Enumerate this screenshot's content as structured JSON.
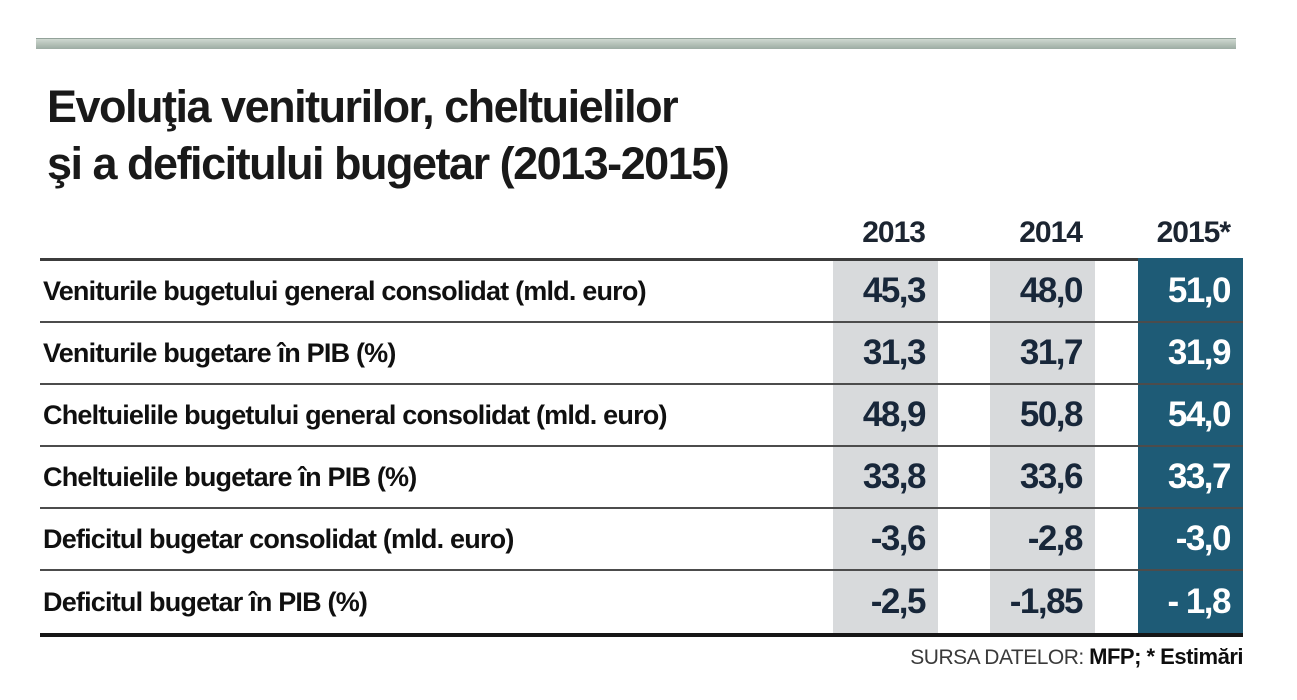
{
  "title_line1": "Evoluţia veniturilor, cheltuielilor",
  "title_line2": "şi a deficitului bugetar (2013-2015)",
  "colors": {
    "highlight_column_teal": "#1e5b76",
    "column_band_gray": "#d8dadc",
    "top_bar_sage": "#b8c4bb"
  },
  "chart_data": {
    "type": "table",
    "title": "Evoluţia veniturilor, cheltuielilor şi a deficitului bugetar (2013-2015)",
    "columns": [
      "2013",
      "2014",
      "2015*"
    ],
    "highlighted_column": "2015*",
    "rows": [
      {
        "label": "Veniturile bugetului general consolidat (mld. euro)",
        "values": [
          "45,3",
          "48,0",
          "51,0"
        ]
      },
      {
        "label": "Veniturile bugetare în PIB (%)",
        "values": [
          "31,3",
          "31,7",
          "31,9"
        ]
      },
      {
        "label": "Cheltuielile bugetului general consolidat (mld. euro)",
        "values": [
          "48,9",
          "50,8",
          "54,0"
        ]
      },
      {
        "label": "Cheltuielile bugetare în PIB (%)",
        "values": [
          "33,8",
          "33,6",
          "33,7"
        ]
      },
      {
        "label": "Deficitul bugetar consolidat (mld. euro)",
        "values": [
          "-3,6",
          "-2,8",
          "-3,0"
        ]
      },
      {
        "label": "Deficitul bugetar în PIB (%)",
        "values": [
          "-2,5",
          "-1,85",
          "- 1,8"
        ]
      }
    ]
  },
  "footer": {
    "source_label": "SURSA DATELOR:",
    "source_value": "MFP; * Estimări"
  }
}
